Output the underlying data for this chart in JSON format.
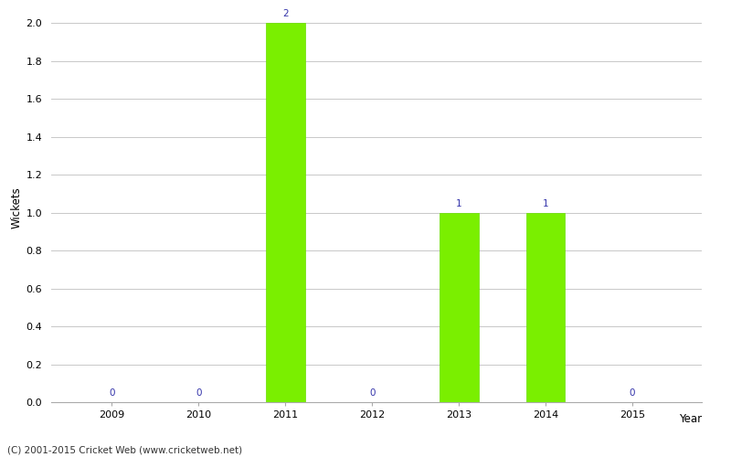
{
  "years": [
    2009,
    2010,
    2011,
    2012,
    2013,
    2014,
    2015
  ],
  "values": [
    0,
    0,
    2,
    0,
    1,
    1,
    0
  ],
  "bar_color": "#7aef00",
  "bar_edge_color": "#6adf00",
  "title": "",
  "xlabel": "Year",
  "ylabel": "Wickets",
  "ylim": [
    0,
    2.05
  ],
  "yticks": [
    0.0,
    0.2,
    0.4,
    0.6,
    0.8,
    1.0,
    1.2,
    1.4,
    1.6,
    1.8,
    2.0
  ],
  "label_color": "#3333aa",
  "label_fontsize": 7.5,
  "axis_label_fontsize": 8.5,
  "tick_fontsize": 8,
  "footer_text": "(C) 2001-2015 Cricket Web (www.cricketweb.net)",
  "footer_fontsize": 7.5,
  "background_color": "#ffffff",
  "grid_color": "#c8c8c8",
  "bar_width": 0.45
}
